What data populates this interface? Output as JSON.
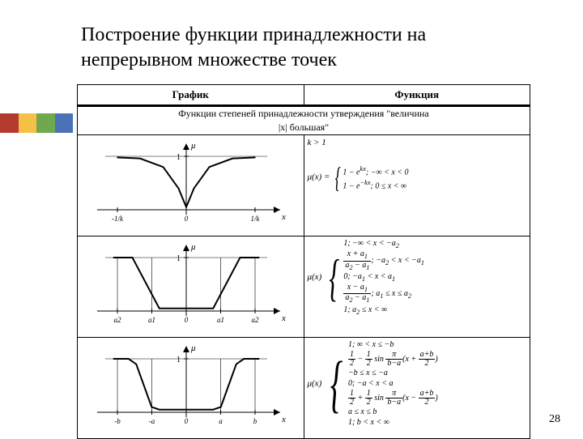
{
  "title": "Построение функции принадлежности на непрерывном множестве точек",
  "page_number": "28",
  "decoration_colors": [
    "#b43a2e",
    "#f5c046",
    "#6fa84f",
    "#4b72b8"
  ],
  "table": {
    "header": {
      "col1": "График",
      "col2": "Функция"
    },
    "section_caption_line1": "Функции степеней принадлежности утверждения \"величина",
    "section_caption_line2": "|x| большая\"",
    "rows": [
      {
        "graph": {
          "type": "membership-curve",
          "shape": "exponential-dip",
          "x_ticks": [
            "-1/k",
            "0",
            "1/k"
          ],
          "y_label": "μ",
          "y_tick": "1",
          "x_axis_label": "x",
          "axis_color": "#000000",
          "curve_color": "#000000",
          "line_width": 2,
          "curve_points": [
            [
              -90,
              2
            ],
            [
              -60,
              4
            ],
            [
              -30,
              20
            ],
            [
              -10,
              60
            ],
            [
              0,
              95
            ],
            [
              10,
              60
            ],
            [
              30,
              20
            ],
            [
              60,
              4
            ],
            [
              90,
              2
            ]
          ]
        },
        "formula": {
          "pre": "k > 1",
          "mu": "μ(x) =",
          "pieces": [
            "1 − e<sup>kx</sup>; −∞ < x < 0",
            "1 − e<sup>−kx</sup>; 0 ≤ x < ∞"
          ]
        }
      },
      {
        "graph": {
          "type": "membership-curve",
          "shape": "trapezoid",
          "x_ticks": [
            "a2",
            "a1",
            "0",
            "a1",
            "a2"
          ],
          "y_label": "μ",
          "y_tick": "1",
          "x_axis_label": "x",
          "axis_color": "#000000",
          "curve_color": "#000000",
          "line_width": 2,
          "curve_points": [
            [
              -95,
              0
            ],
            [
              -70,
              0
            ],
            [
              -35,
              95
            ],
            [
              35,
              95
            ],
            [
              70,
              0
            ],
            [
              95,
              0
            ]
          ]
        },
        "formula": {
          "mu": "μ(x)",
          "pieces": [
            "1; −∞ < x < −a<sub>2</sub>",
            "<span class=\"frac\"><span class=\"num\">x + a<sub>1</sub></span><span class=\"den\">a<sub>2</sub> − a<sub>1</sub></span></span>; −a<sub>2</sub> < x < −a<sub>1</sub>",
            "0; −a<sub>1</sub> < x < a<sub>1</sub>",
            "<span class=\"frac\"><span class=\"num\">x − a<sub>1</sub></span><span class=\"den\">a<sub>2</sub> − a<sub>1</sub></span></span>; a<sub>1</sub> ≤ x ≤ a<sub>2</sub>",
            "1; a<sub>2</sub> ≤ x < ∞"
          ]
        }
      },
      {
        "graph": {
          "type": "membership-curve",
          "shape": "sigmoid-well",
          "x_ticks": [
            "-b",
            "-a",
            "0",
            "a",
            "b"
          ],
          "y_label": "μ",
          "y_tick": "1",
          "x_axis_label": "x",
          "axis_color": "#000000",
          "curve_color": "#000000",
          "line_width": 2,
          "curve_points": [
            [
              -95,
              0
            ],
            [
              -75,
              0
            ],
            [
              -65,
              10
            ],
            [
              -55,
              50
            ],
            [
              -45,
              90
            ],
            [
              -35,
              95
            ],
            [
              35,
              95
            ],
            [
              45,
              90
            ],
            [
              55,
              50
            ],
            [
              65,
              10
            ],
            [
              75,
              0
            ],
            [
              95,
              0
            ]
          ]
        },
        "formula": {
          "mu": "μ(x)",
          "pieces": [
            "1;  ∞ < x ≤ −b",
            "<span class=\"frac\"><span class=\"num\">1</span><span class=\"den\">2</span></span> − <span class=\"frac\"><span class=\"num\">1</span><span class=\"den\">2</span></span> sin <span class=\"frac\"><span class=\"num\">π</span><span class=\"den\">b−a</span></span>(x + <span class=\"frac\"><span class=\"num\">a+b</span><span class=\"den\">2</span></span>)",
            "−b ≤ x ≤ −a",
            "0; −a < x < a",
            "<span class=\"frac\"><span class=\"num\">1</span><span class=\"den\">2</span></span> + <span class=\"frac\"><span class=\"num\">1</span><span class=\"den\">2</span></span> sin <span class=\"frac\"><span class=\"num\">π</span><span class=\"den\">b−a</span></span>(x − <span class=\"frac\"><span class=\"num\">a+b</span><span class=\"den\">2</span></span>)",
            "a ≤ x ≤ b",
            "1; b < x < ∞"
          ]
        }
      }
    ]
  }
}
